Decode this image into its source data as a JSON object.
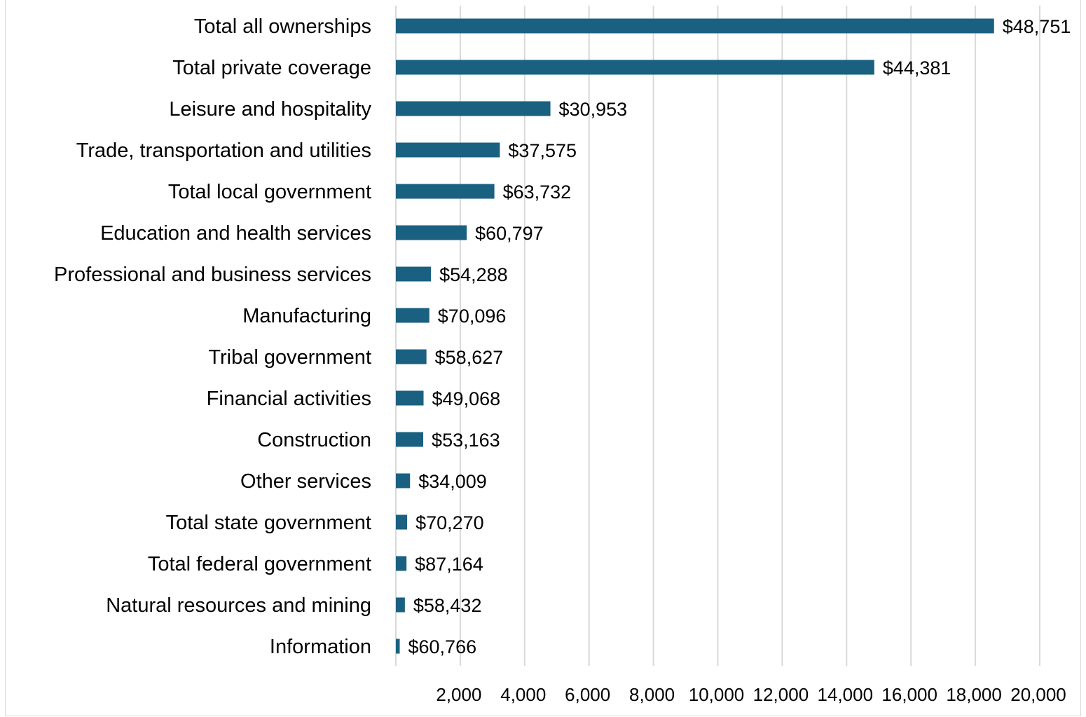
{
  "chart_data": {
    "type": "bar",
    "orientation": "horizontal",
    "title": "",
    "xlabel": "",
    "ylabel": "",
    "xlim": [
      0,
      20000
    ],
    "x_ticks": [
      2000,
      4000,
      6000,
      8000,
      10000,
      12000,
      14000,
      16000,
      18000,
      20000
    ],
    "x_tick_labels": [
      "2,000",
      "4,000",
      "6,000",
      "8,000",
      "10,000",
      "12,000",
      "14,000",
      "16,000",
      "18,000",
      "20,000"
    ],
    "grid": "vertical",
    "legend": "none",
    "bar_color": "#1a6080",
    "categories": [
      "Total all ownerships",
      "Total private coverage",
      "Leisure and hospitality",
      "Trade, transportation and utilities",
      "Total local government",
      "Education and health services",
      "Professional and business services",
      "Manufacturing",
      "Tribal government",
      "Financial activities",
      "Construction",
      "Other services",
      "Total state government",
      "Total federal government",
      "Natural resources and mining",
      "Information"
    ],
    "values": [
      18580,
      14860,
      4800,
      3230,
      3060,
      2200,
      1090,
      1040,
      950,
      860,
      850,
      440,
      350,
      330,
      280,
      120
    ],
    "data_labels": [
      "$48,751",
      "$44,381",
      "$30,953",
      "$37,575",
      "$63,732",
      "$60,797",
      "$54,288",
      "$70,096",
      "$58,627",
      "$49,068",
      "$53,163",
      "$34,009",
      "$70,270",
      "$87,164",
      "$58,432",
      "$60,766"
    ]
  }
}
